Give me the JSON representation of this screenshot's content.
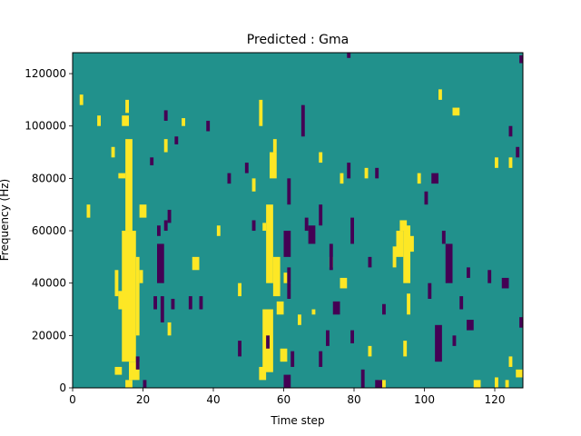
{
  "chart_data": {
    "type": "heatmap",
    "title": "Predicted : Gma",
    "xlabel": "Time step",
    "ylabel": "Frequency (Hz)",
    "xlim": [
      0,
      128
    ],
    "ylim": [
      0,
      128000
    ],
    "xticks": [
      0,
      20,
      40,
      60,
      80,
      100,
      120
    ],
    "yticks": [
      0,
      20000,
      40000,
      60000,
      80000,
      100000,
      120000
    ],
    "xticklabels": [
      "0",
      "20",
      "40",
      "60",
      "80",
      "100",
      "120"
    ],
    "yticklabels": [
      "0",
      "20000",
      "40000",
      "60000",
      "80000",
      "100000",
      "120000"
    ],
    "n_time_steps": 128,
    "n_freq_bins": 128,
    "freq_bin_hz": 1000,
    "grid": false,
    "colors": {
      "background": "#21918c",
      "high": "#fde725",
      "low": "#440154"
    },
    "yellow_rects": [
      [
        14,
        16,
        100,
        104
      ],
      [
        13,
        17,
        30,
        37
      ],
      [
        14,
        18,
        10,
        60
      ],
      [
        15,
        17,
        60,
        95
      ],
      [
        18,
        19,
        20,
        50
      ],
      [
        13,
        15,
        80,
        82
      ],
      [
        15,
        16,
        105,
        110
      ],
      [
        19,
        20,
        40,
        45
      ],
      [
        12,
        13,
        35,
        45
      ],
      [
        16,
        19,
        3,
        10
      ],
      [
        15,
        17,
        0,
        3
      ],
      [
        12,
        14,
        5,
        8
      ],
      [
        19,
        21,
        65,
        70
      ],
      [
        11,
        12,
        88,
        92
      ],
      [
        54,
        57,
        6,
        30
      ],
      [
        55,
        57,
        40,
        70
      ],
      [
        56,
        58,
        80,
        90
      ],
      [
        54,
        55,
        60,
        63
      ],
      [
        57,
        59,
        35,
        50
      ],
      [
        58,
        60,
        28,
        33
      ],
      [
        53,
        55,
        3,
        8
      ],
      [
        57,
        58,
        90,
        95
      ],
      [
        53,
        54,
        100,
        110
      ],
      [
        59,
        61,
        10,
        15
      ],
      [
        94,
        96,
        40,
        62
      ],
      [
        92,
        94,
        50,
        60
      ],
      [
        93,
        95,
        60,
        64
      ],
      [
        91,
        92,
        46,
        54
      ],
      [
        96,
        97,
        52,
        58
      ],
      [
        95,
        96,
        28,
        36
      ],
      [
        94,
        95,
        12,
        18
      ],
      [
        26,
        27,
        90,
        95
      ],
      [
        31,
        32,
        100,
        103
      ],
      [
        51,
        52,
        75,
        80
      ],
      [
        70,
        71,
        86,
        90
      ],
      [
        76,
        77,
        78,
        82
      ],
      [
        83,
        84,
        80,
        84
      ],
      [
        98,
        99,
        78,
        82
      ],
      [
        104,
        105,
        110,
        114
      ],
      [
        108,
        110,
        104,
        107
      ],
      [
        120,
        121,
        84,
        88
      ],
      [
        124,
        125,
        84,
        88
      ],
      [
        4,
        5,
        65,
        70
      ],
      [
        2,
        3,
        108,
        112
      ],
      [
        7,
        8,
        100,
        104
      ],
      [
        27,
        28,
        20,
        25
      ],
      [
        34,
        36,
        45,
        50
      ],
      [
        41,
        42,
        58,
        62
      ],
      [
        47,
        48,
        35,
        40
      ],
      [
        64,
        65,
        24,
        28
      ],
      [
        76,
        78,
        38,
        42
      ],
      [
        84,
        85,
        12,
        16
      ],
      [
        87,
        89,
        0,
        3
      ],
      [
        114,
        116,
        0,
        3
      ],
      [
        120,
        121,
        0,
        4
      ],
      [
        123,
        124,
        0,
        3
      ],
      [
        126,
        128,
        4,
        7
      ],
      [
        124,
        125,
        8,
        12
      ],
      [
        60,
        61,
        40,
        44
      ],
      [
        73,
        74,
        46,
        50
      ],
      [
        68,
        69,
        28,
        30
      ]
    ],
    "purple_rects": [
      [
        24,
        26,
        40,
        55
      ],
      [
        25,
        26,
        25,
        35
      ],
      [
        24,
        25,
        58,
        62
      ],
      [
        26,
        27,
        60,
        64
      ],
      [
        23,
        24,
        30,
        35
      ],
      [
        27,
        28,
        63,
        68
      ],
      [
        22,
        23,
        85,
        88
      ],
      [
        26,
        27,
        102,
        106
      ],
      [
        29,
        30,
        93,
        96
      ],
      [
        28,
        29,
        30,
        34
      ],
      [
        60,
        62,
        50,
        60
      ],
      [
        61,
        62,
        34,
        40
      ],
      [
        61,
        62,
        70,
        80
      ],
      [
        62,
        63,
        8,
        14
      ],
      [
        61,
        62,
        40,
        46
      ],
      [
        70,
        71,
        62,
        70
      ],
      [
        73,
        74,
        45,
        55
      ],
      [
        74,
        76,
        28,
        33
      ],
      [
        72,
        73,
        16,
        22
      ],
      [
        70,
        71,
        8,
        14
      ],
      [
        79,
        80,
        55,
        65
      ],
      [
        79,
        80,
        17,
        22
      ],
      [
        82,
        83,
        0,
        7
      ],
      [
        86,
        88,
        0,
        3
      ],
      [
        60,
        62,
        0,
        5
      ],
      [
        67,
        69,
        55,
        62
      ],
      [
        78,
        79,
        80,
        86
      ],
      [
        84,
        85,
        46,
        50
      ],
      [
        65,
        66,
        96,
        108
      ],
      [
        66,
        67,
        60,
        65
      ],
      [
        103,
        105,
        10,
        24
      ],
      [
        106,
        108,
        40,
        55
      ],
      [
        112,
        113,
        42,
        46
      ],
      [
        110,
        111,
        30,
        35
      ],
      [
        112,
        114,
        22,
        26
      ],
      [
        127,
        128,
        23,
        27
      ],
      [
        122,
        124,
        38,
        42
      ],
      [
        118,
        119,
        40,
        45
      ],
      [
        124,
        125,
        96,
        100
      ],
      [
        126,
        127,
        88,
        92
      ],
      [
        78,
        79,
        128,
        126
      ],
      [
        127,
        128,
        124,
        127
      ],
      [
        38,
        39,
        98,
        102
      ],
      [
        44,
        45,
        78,
        82
      ],
      [
        47,
        48,
        12,
        18
      ],
      [
        49,
        50,
        82,
        86
      ],
      [
        51,
        52,
        60,
        64
      ],
      [
        55,
        56,
        15,
        20
      ],
      [
        102,
        104,
        78,
        82
      ],
      [
        36,
        37,
        30,
        35
      ],
      [
        33,
        34,
        30,
        35
      ],
      [
        105,
        106,
        55,
        60
      ],
      [
        86,
        87,
        80,
        84
      ],
      [
        100,
        101,
        70,
        75
      ],
      [
        88,
        89,
        28,
        32
      ],
      [
        101,
        102,
        34,
        40
      ],
      [
        108,
        109,
        16,
        20
      ],
      [
        20,
        21,
        0,
        3
      ],
      [
        18,
        19,
        7,
        12
      ]
    ]
  }
}
